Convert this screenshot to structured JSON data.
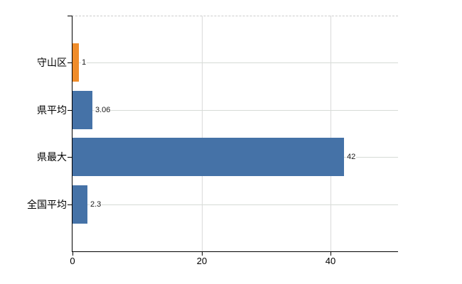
{
  "chart_data": {
    "type": "bar",
    "orientation": "horizontal",
    "title": "",
    "xlabel": "",
    "ylabel": "",
    "categories": [
      "守山区",
      "県平均",
      "県最大",
      "全国平均"
    ],
    "values": [
      1,
      3.06,
      42,
      2.3
    ],
    "value_labels": [
      "1",
      "3.06",
      "42",
      "2.3"
    ],
    "bar_colors": [
      "#ef8c2a",
      "#4572a7",
      "#4572a7",
      "#4572a7"
    ],
    "xticks": [
      0,
      20,
      40
    ],
    "xtick_labels": [
      "0",
      "20",
      "40"
    ],
    "xlim": [
      0,
      50.4
    ],
    "legend": "none",
    "grid": {
      "horizontal_at_bar_centers": true,
      "vertical_at_ticks": true,
      "top_border": "dashed"
    },
    "colors": {
      "background": "#ffffff",
      "grid_horizontal": "#d6dbd6",
      "grid_vertical": "#dadada",
      "top_border": "#cccccc",
      "axis": "#000000",
      "text": "#000000"
    }
  }
}
